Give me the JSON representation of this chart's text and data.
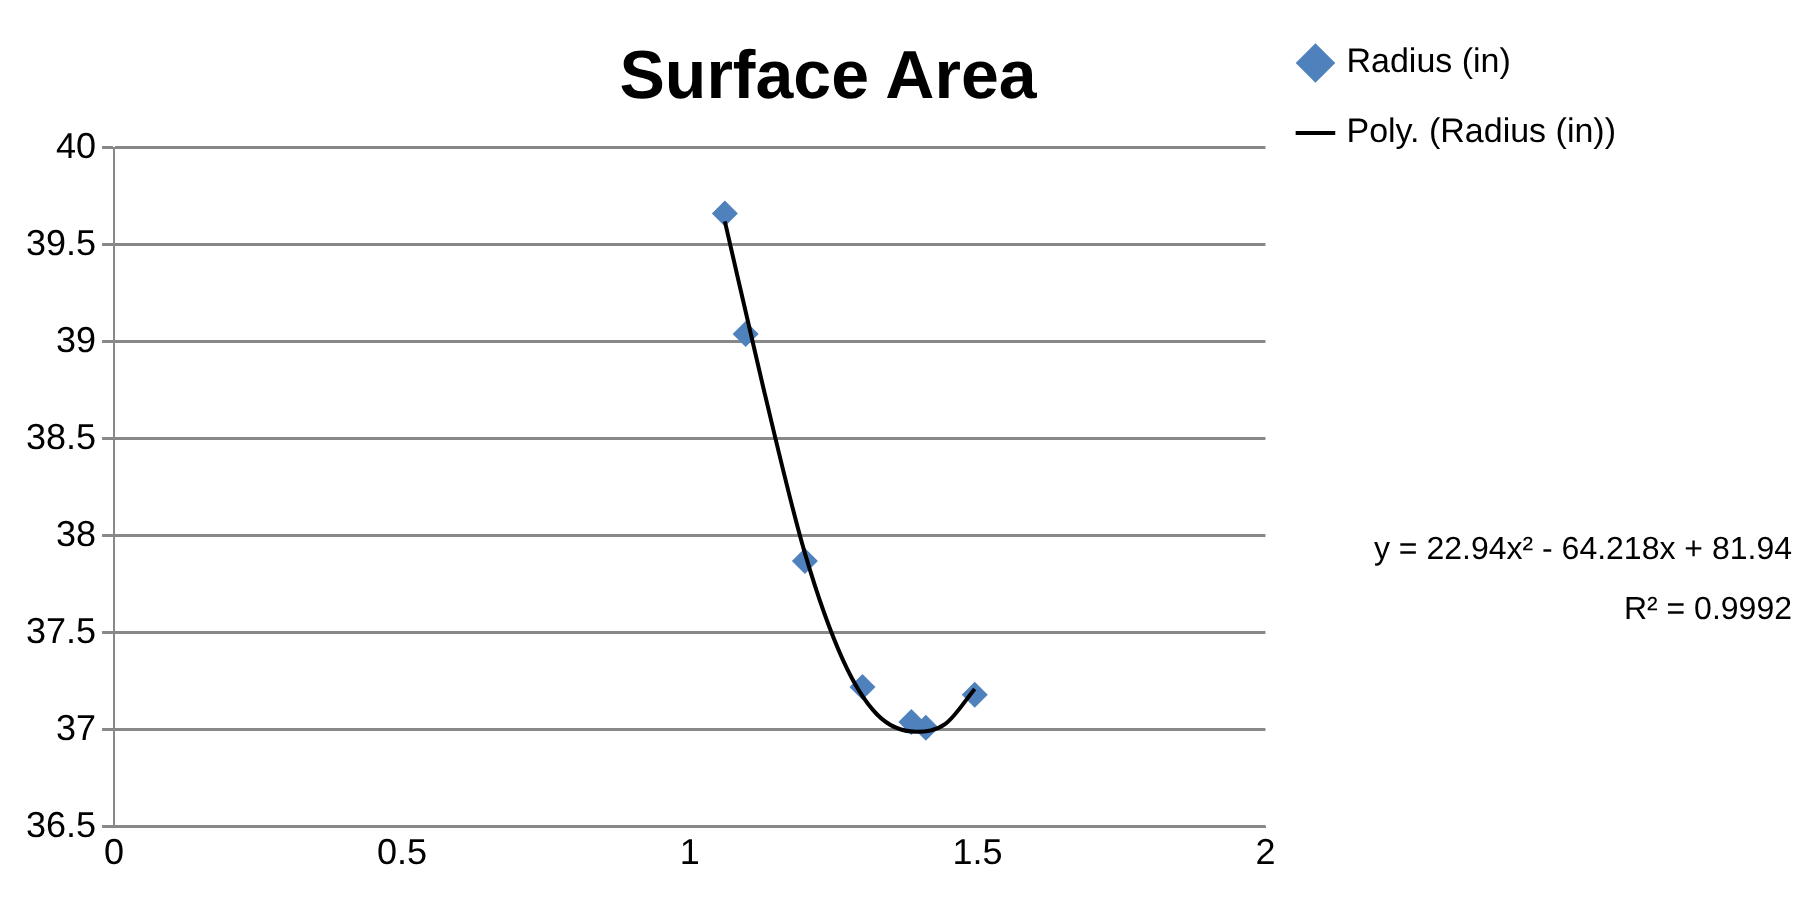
{
  "chart_data": {
    "type": "scatter",
    "title": "Surface Area",
    "series": [
      {
        "name": "Radius (in)",
        "color": "#4f81bd",
        "marker": "diamond",
        "x": [
          1.061,
          1.097,
          1.2,
          1.3,
          1.385,
          1.41,
          1.495
        ],
        "values": [
          39.66,
          39.04,
          37.87,
          37.22,
          37.04,
          37.01,
          37.18
        ]
      },
      {
        "name": "Poly. (Radius (in))",
        "type": "line",
        "marker": "none",
        "color": "#000000",
        "x": [
          1.061,
          1.128,
          1.2,
          1.266,
          1.325,
          1.393,
          1.444,
          1.495
        ],
        "values": [
          39.62,
          38.76,
          37.91,
          37.36,
          37.08,
          36.99,
          37.03,
          37.21
        ]
      }
    ],
    "xlim": [
      0,
      2
    ],
    "xticks": [
      0,
      0.5,
      1,
      1.5,
      2
    ],
    "ylim": [
      36.5,
      40
    ],
    "yticks": [
      36.5,
      37,
      37.5,
      38,
      38.5,
      39,
      39.5,
      40
    ],
    "grid": "y",
    "legend": "right",
    "annotations": [
      "y = 22.94x² - 64.218x + 81.94",
      "R² = 0.9992"
    ]
  }
}
